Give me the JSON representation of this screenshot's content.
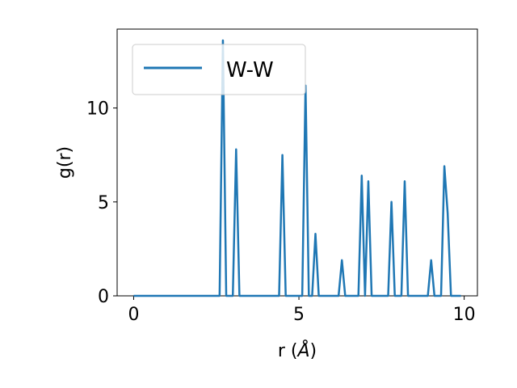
{
  "chart_data": {
    "type": "line",
    "title": "",
    "xlabel_main": "r (",
    "xlabel_unit": "Å",
    "xlabel_close": ")",
    "ylabel": "g(r)",
    "xlim": [
      -0.5,
      10.4
    ],
    "ylim": [
      0,
      14.2
    ],
    "xticks": [
      0,
      5,
      10
    ],
    "yticks": [
      0,
      5,
      10
    ],
    "grid": false,
    "legend_position": "top-left",
    "line_color": "#1f77b4",
    "series": [
      {
        "name": "W-W",
        "x": [
          0,
          2.6,
          2.7,
          2.8,
          3.0,
          3.1,
          3.2,
          4.4,
          4.5,
          4.6,
          5.1,
          5.2,
          5.3,
          5.4,
          5.5,
          5.6,
          6.2,
          6.3,
          6.4,
          6.8,
          6.9,
          7.0,
          7.1,
          7.2,
          7.7,
          7.8,
          7.9,
          8.1,
          8.2,
          8.3,
          8.9,
          9.0,
          9.1,
          9.3,
          9.4,
          9.5,
          9.6,
          9.9
        ],
        "y": [
          0,
          0,
          13.6,
          0,
          0,
          7.8,
          0,
          0,
          7.5,
          0,
          0,
          11.2,
          0,
          0,
          3.3,
          0,
          0,
          1.9,
          0,
          0,
          6.4,
          0,
          6.1,
          0,
          0,
          5.0,
          0,
          0,
          6.1,
          0,
          0,
          1.9,
          0,
          0,
          6.9,
          4.4,
          0,
          0
        ]
      }
    ]
  }
}
